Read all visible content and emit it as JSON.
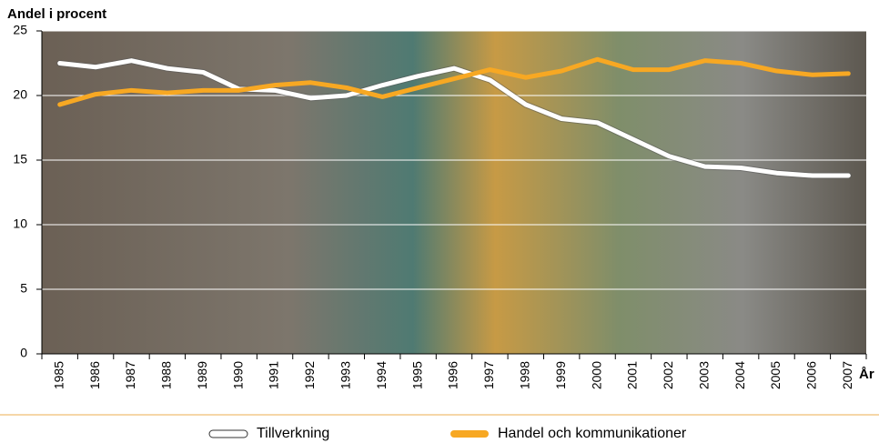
{
  "chart_data": {
    "type": "line",
    "y_label": "Andel i procent",
    "x_label": "År",
    "categories": [
      "1985",
      "1986",
      "1987",
      "1988",
      "1989",
      "1990",
      "1991",
      "1992",
      "1993",
      "1994",
      "1995",
      "1996",
      "1997",
      "1998",
      "1999",
      "2000",
      "2001",
      "2002",
      "2003",
      "2004",
      "2005",
      "2006",
      "2007"
    ],
    "series": [
      {
        "name": "Tillverkning",
        "color": "#ffffff",
        "values": [
          22.5,
          22.2,
          22.7,
          22.1,
          21.8,
          20.5,
          20.4,
          19.8,
          20.0,
          20.8,
          21.5,
          22.1,
          21.2,
          19.3,
          18.2,
          17.9,
          16.6,
          15.3,
          14.5,
          14.4,
          14.0,
          13.8,
          13.8
        ]
      },
      {
        "name": "Handel och kommunikationer",
        "color": "#f7a823",
        "values": [
          19.3,
          20.1,
          20.4,
          20.2,
          20.4,
          20.4,
          20.8,
          21.0,
          20.6,
          19.9,
          20.6,
          21.3,
          22.0,
          21.4,
          21.9,
          22.8,
          22.0,
          22.0,
          22.7,
          22.5,
          21.9,
          21.6,
          21.7
        ]
      }
    ],
    "ylim": [
      0,
      25
    ],
    "yticks": [
      0,
      5,
      10,
      15,
      20,
      25
    ],
    "grid": true
  }
}
